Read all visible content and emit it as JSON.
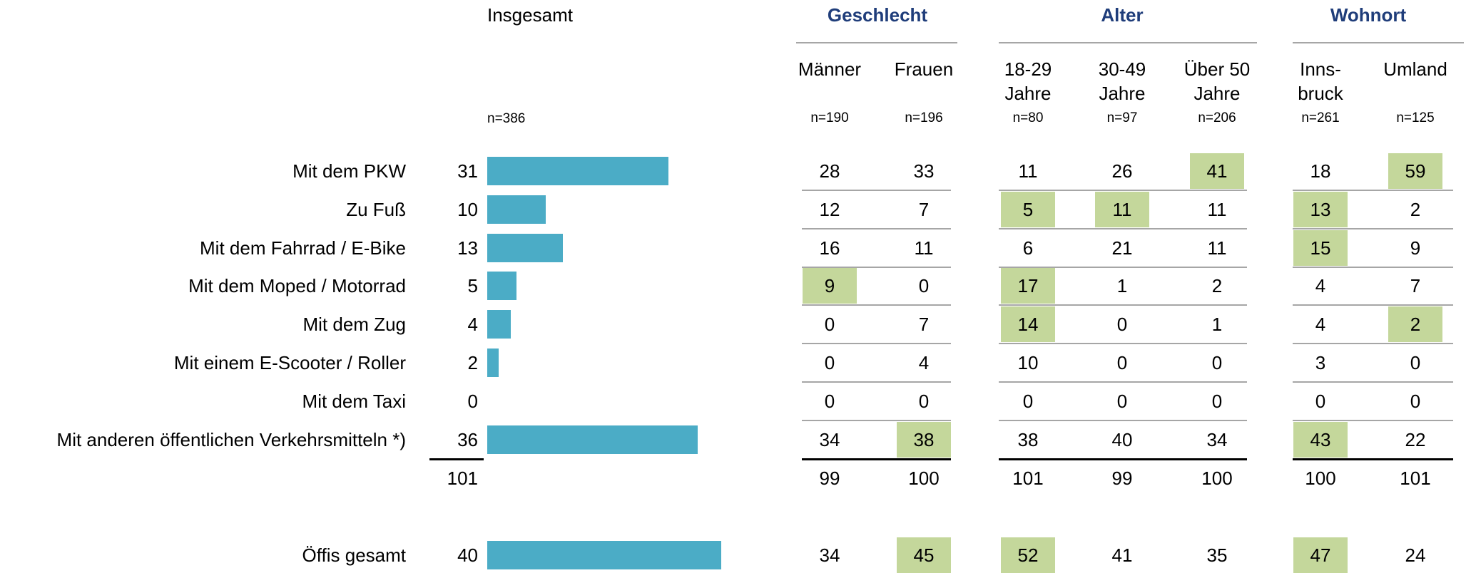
{
  "chart_data": {
    "type": "bar",
    "title": "Insgesamt",
    "n": "n=386",
    "categories": [
      "Mit dem PKW",
      "Zu Fuß",
      "Mit dem Fahrrad / E-Bike",
      "Mit dem Moped / Motorrad",
      "Mit dem Zug",
      "Mit einem E-Scooter / Roller",
      "Mit dem Taxi",
      "Mit anderen öffentlichen Verkehrsmitteln *)"
    ],
    "values": [
      31,
      10,
      13,
      5,
      4,
      2,
      0,
      36
    ],
    "total": 101,
    "summary": {
      "label": "Öffis gesamt",
      "value": 40
    },
    "color": "#4bacc6"
  },
  "table": {
    "groups": [
      {
        "title": "Geschlecht",
        "columns": [
          {
            "label": "Männer",
            "n": "n=190"
          },
          {
            "label": "Frauen",
            "n": "n=196"
          }
        ]
      },
      {
        "title": "Alter",
        "columns": [
          {
            "label": "18-29\nJahre",
            "n": "n=80"
          },
          {
            "label": "30-49\nJahre",
            "n": "n=97"
          },
          {
            "label": "Über 50\nJahre",
            "n": "n=206"
          }
        ]
      },
      {
        "title": "Wohnort",
        "columns": [
          {
            "label": "Inns-\nbruck",
            "n": "n=261"
          },
          {
            "label": "Umland",
            "n": "n=125"
          }
        ]
      }
    ],
    "rows": [
      {
        "values": [
          28,
          33,
          11,
          26,
          41,
          18,
          59
        ],
        "highlighted": [
          4,
          6
        ]
      },
      {
        "values": [
          12,
          7,
          5,
          11,
          11,
          13,
          2
        ],
        "highlighted": [
          2,
          3,
          5
        ]
      },
      {
        "values": [
          16,
          11,
          6,
          21,
          11,
          15,
          9
        ],
        "highlighted": [
          5
        ]
      },
      {
        "values": [
          9,
          0,
          17,
          1,
          2,
          4,
          7
        ],
        "highlighted": [
          0,
          2
        ]
      },
      {
        "values": [
          0,
          7,
          14,
          0,
          1,
          4,
          2
        ],
        "highlighted": [
          2,
          6
        ]
      },
      {
        "values": [
          0,
          4,
          10,
          0,
          0,
          3,
          0
        ],
        "highlighted": []
      },
      {
        "values": [
          0,
          0,
          0,
          0,
          0,
          0,
          0
        ],
        "highlighted": []
      },
      {
        "values": [
          34,
          38,
          38,
          40,
          34,
          43,
          22
        ],
        "highlighted": [
          1,
          5
        ]
      }
    ],
    "totals": [
      99,
      100,
      101,
      99,
      100,
      100,
      101
    ],
    "summary": {
      "values": [
        34,
        45,
        52,
        41,
        35,
        47,
        24
      ],
      "highlighted": [
        1,
        2,
        5
      ]
    },
    "highlight_color": "#c4d79b"
  }
}
